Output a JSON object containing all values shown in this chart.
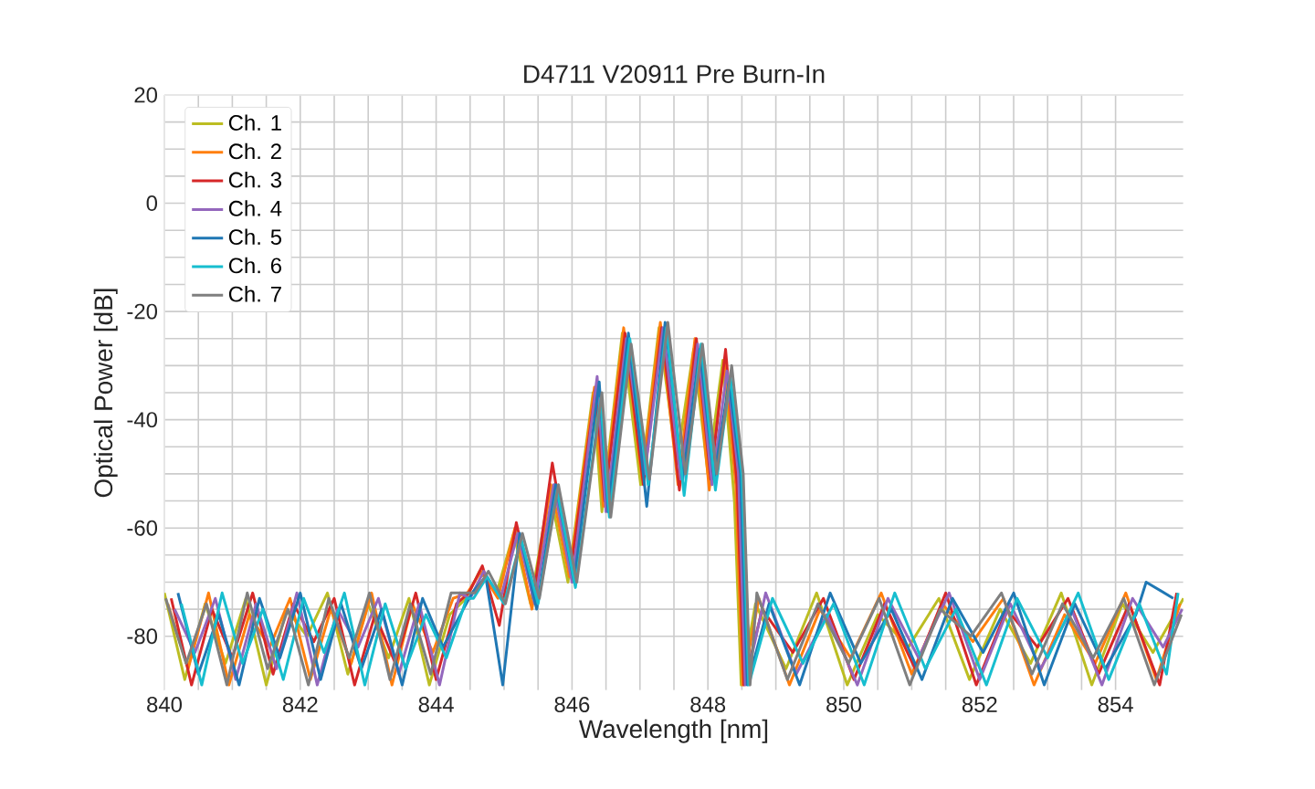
{
  "chart_data": {
    "type": "line",
    "title": "D4711 V20911 Pre Burn-In",
    "xlabel": "Wavelength [nm]",
    "ylabel": "Optical Power [dB]",
    "xlim": [
      840,
      855
    ],
    "ylim": [
      -90,
      20
    ],
    "xticks": [
      840,
      842,
      844,
      846,
      848,
      850,
      852,
      854
    ],
    "yticks": [
      -80,
      -60,
      -40,
      -20,
      0,
      20
    ],
    "grid": true,
    "legend": "top left",
    "series": [
      {
        "name": "Ch. 1",
        "color": "#bcbd22",
        "x": [
          840.0,
          840.3,
          840.6,
          840.9,
          841.2,
          841.5,
          841.8,
          842.1,
          842.4,
          842.7,
          843.0,
          843.3,
          843.6,
          843.9,
          844.2,
          844.44,
          844.64,
          844.89,
          845.14,
          845.39,
          845.67,
          845.94,
          846.31,
          846.44,
          846.74,
          847.01,
          847.28,
          847.54,
          847.79,
          848.0,
          848.22,
          848.39,
          848.49,
          848.7,
          849.15,
          849.6,
          850.05,
          850.5,
          850.95,
          851.4,
          851.85,
          852.3,
          852.75,
          853.2,
          853.65,
          854.1,
          854.55,
          855.0
        ],
        "values": [
          -72,
          -88,
          -74,
          -85,
          -73,
          -89,
          -75,
          -80,
          -72,
          -87,
          -74,
          -84,
          -73,
          -89,
          -76,
          -73,
          -68,
          -72,
          -61,
          -74,
          -53,
          -70,
          -35,
          -57,
          -24,
          -52,
          -23,
          -48,
          -27,
          -50,
          -29,
          -55,
          -89,
          -74,
          -86,
          -72,
          -89,
          -76,
          -82,
          -73,
          -88,
          -75,
          -85,
          -72,
          -89,
          -74,
          -83,
          -73
        ]
      },
      {
        "name": "Ch. 2",
        "color": "#ff7f0e",
        "x": [
          840.05,
          840.35,
          840.65,
          840.95,
          841.25,
          841.55,
          841.85,
          842.15,
          842.45,
          842.75,
          843.05,
          843.35,
          843.65,
          843.95,
          844.25,
          844.46,
          844.66,
          844.91,
          845.16,
          845.41,
          845.69,
          845.96,
          846.33,
          846.46,
          846.76,
          847.03,
          847.3,
          847.56,
          847.81,
          848.02,
          848.24,
          848.41,
          848.51,
          848.75,
          849.2,
          849.65,
          850.1,
          850.55,
          851.0,
          851.45,
          851.9,
          852.35,
          852.8,
          853.25,
          853.7,
          854.15,
          854.6,
          854.95
        ],
        "values": [
          -74,
          -86,
          -72,
          -89,
          -76,
          -82,
          -73,
          -88,
          -75,
          -85,
          -72,
          -89,
          -74,
          -83,
          -73,
          -72,
          -68,
          -73,
          -60,
          -75,
          -52,
          -69,
          -34,
          -56,
          -23,
          -51,
          -22,
          -52,
          -25,
          -53,
          -29,
          -52,
          -89,
          -73,
          -89,
          -75,
          -84,
          -72,
          -87,
          -74,
          -81,
          -73,
          -89,
          -76,
          -85,
          -72,
          -88,
          -74
        ]
      },
      {
        "name": "Ch. 3",
        "color": "#d62728",
        "x": [
          840.1,
          840.4,
          840.7,
          841.0,
          841.3,
          841.6,
          841.9,
          842.2,
          842.5,
          842.8,
          843.1,
          843.4,
          843.7,
          844.0,
          844.3,
          844.48,
          844.68,
          844.93,
          845.18,
          845.43,
          845.71,
          845.98,
          846.35,
          846.48,
          846.78,
          847.05,
          847.32,
          847.58,
          847.83,
          848.04,
          848.26,
          848.43,
          848.53,
          848.8,
          849.25,
          849.7,
          850.15,
          850.6,
          851.05,
          851.5,
          851.95,
          852.4,
          852.85,
          853.3,
          853.75,
          854.2,
          854.65,
          854.9
        ],
        "values": [
          -73,
          -89,
          -75,
          -84,
          -72,
          -87,
          -74,
          -81,
          -73,
          -89,
          -76,
          -85,
          -72,
          -88,
          -74,
          -72,
          -67,
          -78,
          -59,
          -73,
          -48,
          -68,
          -34,
          -55,
          -24,
          -52,
          -23,
          -53,
          -25,
          -51,
          -27,
          -52,
          -89,
          -75,
          -83,
          -73,
          -88,
          -74,
          -86,
          -72,
          -89,
          -75,
          -82,
          -73,
          -87,
          -74,
          -89,
          -72
        ]
      },
      {
        "name": "Ch. 4",
        "color": "#9467bd",
        "x": [
          840.15,
          840.45,
          840.75,
          841.05,
          841.35,
          841.65,
          841.95,
          842.25,
          842.55,
          842.85,
          843.15,
          843.45,
          843.75,
          844.05,
          844.35,
          844.5,
          844.7,
          844.95,
          845.2,
          845.45,
          845.73,
          846.0,
          846.37,
          846.5,
          846.8,
          847.07,
          847.34,
          847.6,
          847.85,
          848.06,
          848.28,
          848.45,
          848.55,
          848.85,
          849.3,
          849.75,
          850.2,
          850.65,
          851.1,
          851.55,
          852.0,
          852.45,
          852.9,
          853.35,
          853.8,
          854.25,
          854.7,
          854.98
        ],
        "values": [
          -75,
          -83,
          -73,
          -88,
          -74,
          -86,
          -72,
          -89,
          -75,
          -82,
          -73,
          -87,
          -74,
          -89,
          -72,
          -73,
          -68,
          -73,
          -61,
          -74,
          -52,
          -70,
          -32,
          -57,
          -25,
          -50,
          -23,
          -51,
          -26,
          -52,
          -31,
          -50,
          -89,
          -72,
          -87,
          -76,
          -89,
          -73,
          -84,
          -72,
          -88,
          -74,
          -86,
          -75,
          -89,
          -73,
          -82,
          -75
        ]
      },
      {
        "name": "Ch. 5",
        "color": "#1f77b4",
        "x": [
          840.2,
          840.5,
          840.8,
          841.1,
          841.4,
          841.7,
          842.0,
          842.3,
          842.6,
          842.9,
          843.2,
          843.5,
          843.8,
          844.1,
          844.4,
          844.53,
          844.73,
          844.98,
          845.23,
          845.48,
          845.76,
          846.03,
          846.4,
          846.53,
          846.83,
          847.1,
          847.37,
          847.63,
          847.88,
          848.09,
          848.31,
          848.48,
          848.58,
          848.9,
          849.35,
          849.8,
          850.25,
          850.7,
          851.15,
          851.6,
          852.05,
          852.5,
          852.95,
          853.4,
          853.85,
          854.3,
          854.45,
          854.85
        ],
        "values": [
          -72,
          -87,
          -76,
          -89,
          -73,
          -84,
          -72,
          -88,
          -74,
          -86,
          -75,
          -89,
          -73,
          -82,
          -75,
          -72,
          -69,
          -89,
          -61,
          -75,
          -52,
          -70,
          -33,
          -57,
          -24,
          -56,
          -22,
          -51,
          -27,
          -51,
          -33,
          -50,
          -89,
          -74,
          -89,
          -72,
          -85,
          -75,
          -88,
          -73,
          -83,
          -72,
          -89,
          -74,
          -86,
          -76,
          -70,
          -73
        ]
      },
      {
        "name": "Ch. 6",
        "color": "#17becf",
        "x": [
          840.25,
          840.55,
          840.85,
          841.15,
          841.45,
          841.75,
          842.05,
          842.35,
          842.65,
          842.95,
          843.25,
          843.55,
          843.85,
          844.15,
          844.45,
          844.55,
          844.75,
          845.0,
          845.25,
          845.5,
          845.78,
          846.05,
          846.42,
          846.55,
          846.85,
          847.12,
          847.39,
          847.65,
          847.9,
          848.11,
          848.33,
          848.5,
          848.6,
          848.95,
          849.4,
          849.85,
          850.3,
          850.75,
          851.2,
          851.65,
          852.1,
          852.55,
          853.0,
          853.45,
          853.9,
          854.35,
          854.75,
          854.92
        ],
        "values": [
          -74,
          -89,
          -72,
          -85,
          -75,
          -88,
          -73,
          -83,
          -72,
          -89,
          -74,
          -86,
          -76,
          -84,
          -73,
          -73,
          -69,
          -74,
          -62,
          -74,
          -53,
          -71,
          -36,
          -58,
          -25,
          -52,
          -23,
          -54,
          -26,
          -53,
          -32,
          -50,
          -89,
          -73,
          -85,
          -74,
          -89,
          -72,
          -86,
          -75,
          -89,
          -73,
          -84,
          -72,
          -88,
          -74,
          -87,
          -72
        ]
      },
      {
        "name": "Ch. 7",
        "color": "#7f7f7f",
        "x": [
          840.02,
          840.32,
          840.62,
          840.92,
          841.22,
          841.52,
          841.82,
          842.12,
          842.42,
          842.72,
          843.02,
          843.32,
          843.62,
          843.92,
          844.22,
          844.57,
          844.77,
          845.02,
          845.27,
          845.52,
          845.8,
          846.07,
          846.44,
          846.57,
          846.87,
          847.14,
          847.41,
          847.67,
          847.92,
          848.13,
          848.35,
          848.52,
          848.62,
          848.72,
          849.17,
          849.62,
          850.07,
          850.52,
          850.97,
          851.42,
          851.87,
          852.32,
          852.77,
          853.22,
          853.67,
          854.12,
          854.57,
          854.97
        ],
        "values": [
          -73,
          -85,
          -74,
          -89,
          -72,
          -86,
          -75,
          -89,
          -73,
          -84,
          -72,
          -88,
          -74,
          -87,
          -72,
          -72,
          -68,
          -74,
          -61,
          -73,
          -52,
          -70,
          -35,
          -58,
          -26,
          -51,
          -22,
          -50,
          -26,
          -50,
          -30,
          -50,
          -89,
          -72,
          -88,
          -74,
          -85,
          -73,
          -89,
          -75,
          -80,
          -72,
          -87,
          -74,
          -84,
          -73,
          -89,
          -76
        ]
      }
    ]
  }
}
